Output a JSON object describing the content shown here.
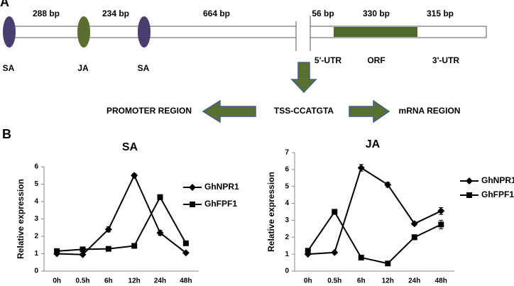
{
  "diagram": {
    "panel_label": "A",
    "segments": [
      "288 bp",
      "234 bp",
      "664 bp",
      "56 bp",
      "330 bp",
      "315 bp"
    ],
    "elements": [
      "SA",
      "JA",
      "SA"
    ],
    "regions": [
      "5'-UTR",
      "ORF",
      "3'-UTR"
    ],
    "left_label": "PROMOTER REGION",
    "center_label": "TSS-CCATGTA",
    "right_label": "mRNA REGION"
  },
  "panel_label_b": "B",
  "chart_data": [
    {
      "type": "line",
      "title": "SA",
      "y_label": "Relative expression",
      "categories": [
        "0h",
        "0.5h",
        "6h",
        "12h",
        "24h",
        "48h"
      ],
      "series": [
        {
          "name": "GhNPR1",
          "color": "#000000",
          "marker": "diamond",
          "values": [
            1.0,
            0.95,
            2.4,
            5.5,
            2.2,
            1.05
          ],
          "errors": [
            0.05,
            0.05,
            0.15,
            0.1,
            0.15,
            0.05
          ]
        },
        {
          "name": "GhFPF1",
          "color": "#000000",
          "marker": "square",
          "values": [
            1.15,
            1.25,
            1.28,
            1.45,
            4.25,
            1.6
          ],
          "errors": [
            0.05,
            0.05,
            0.05,
            0.05,
            0.15,
            0.1
          ]
        }
      ],
      "ylim": [
        0,
        6
      ],
      "yticks": [
        0,
        1,
        2,
        3,
        4,
        5,
        6
      ]
    },
    {
      "type": "line",
      "title": "JA",
      "y_label": "Relative expression",
      "categories": [
        "0h",
        "0.5h",
        "6h",
        "12h",
        "24h",
        "48h"
      ],
      "series": [
        {
          "name": "GhNPR1",
          "color": "#000000",
          "marker": "diamond",
          "values": [
            1.0,
            1.1,
            6.1,
            5.1,
            2.8,
            3.55
          ],
          "errors": [
            0.05,
            0.05,
            0.2,
            0.15,
            0.1,
            0.2
          ]
        },
        {
          "name": "GhFPF1",
          "color": "#000000",
          "marker": "square",
          "values": [
            1.2,
            3.5,
            0.8,
            0.45,
            2.0,
            2.75
          ],
          "errors": [
            0.05,
            0.15,
            0.05,
            0.05,
            0.15,
            0.25
          ]
        }
      ],
      "ylim": [
        0,
        7
      ],
      "yticks": [
        0,
        1,
        2,
        3,
        4,
        5,
        6,
        7
      ]
    }
  ]
}
